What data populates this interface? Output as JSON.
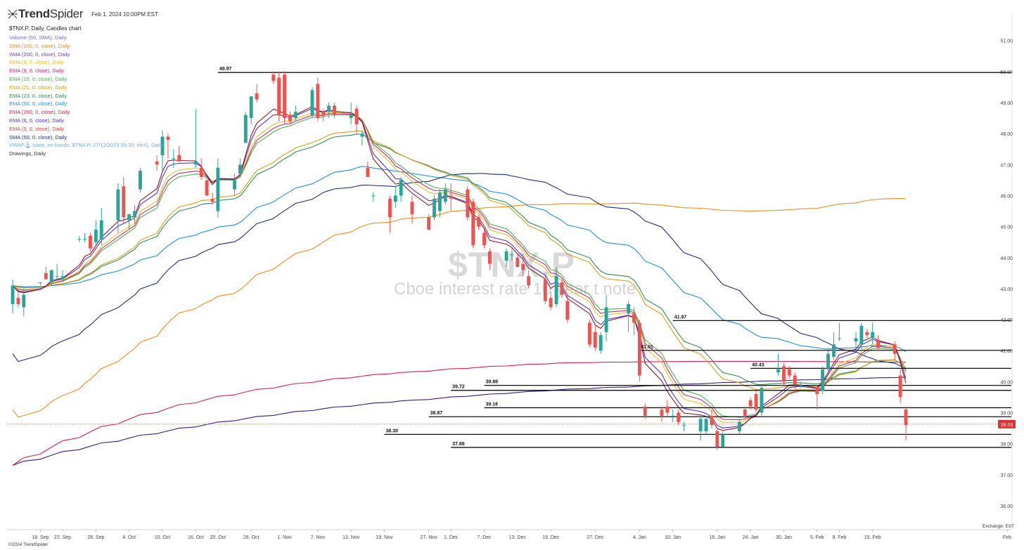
{
  "header": {
    "brand_bold": "Trend",
    "brand_thin": "Spider",
    "datetime": "Feb 1, 2024 10:00PM EST",
    "symbol_line": "$TNX.P, Daily, Candles chart"
  },
  "indicators": [
    {
      "label": "Volume (50, SMA), Daily",
      "color": "#7b68c8"
    },
    {
      "label": "SMA (100, 0, close), Daily",
      "color": "#f08c1e"
    },
    {
      "label": "SMA (200, 0, close), Daily",
      "color": "#6a3cb0"
    },
    {
      "label": "EMA (8, 0, close), Daily",
      "color": "#e6c229"
    },
    {
      "label": "EMA (9, 0, close), Daily",
      "color": "#c0306e"
    },
    {
      "label": "EMA (10, 0, close), Daily",
      "color": "#4caf50"
    },
    {
      "label": "EMA (21, 0, close), Daily",
      "color": "#d4a017"
    },
    {
      "label": "EMA (23, 0, close), Daily",
      "color": "#2e8b57"
    },
    {
      "label": "EMA (50, 0, close), Daily",
      "color": "#1e90d6"
    },
    {
      "label": "EMA (200, 0, close), Daily",
      "color": "#d62050"
    },
    {
      "label": "EMA (6, 0, close), Daily",
      "color": "#5a30c0"
    },
    {
      "label": "EMA (5, 0, close), Daily",
      "color": "#e04040"
    },
    {
      "label": "SMA (50, 0, close), Daily",
      "color": "#1a2e7a"
    },
    {
      "label": "VWAP⚓ (date, no bands, $TNX.P, 27/12/2023 09:30, hlc4), Daily",
      "color": "#6ab0e0"
    },
    {
      "label": "Drawings, Daily",
      "color": "#333333"
    }
  ],
  "watermark": {
    "symbol": "$TNX.P",
    "name": "Cboe interest rate 10 year t note"
  },
  "footer": {
    "copyright": "©2024 TrendSpider",
    "exchange": "Exchange: EST"
  },
  "chart_data": {
    "type": "candlestick",
    "y_ticks": [
      "51.00",
      "50.00",
      "49.00",
      "48.00",
      "47.00",
      "46.00",
      "45.00",
      "44.00",
      "43.00",
      "42.00",
      "41.00",
      "40.00",
      "39.00",
      "38.00",
      "37.00",
      "36.00"
    ],
    "ylim": [
      35.5,
      51.9
    ],
    "x_ticks": [
      "18. Sep",
      "22. Sep",
      "28. Sep",
      "4. Oct",
      "10. Oct",
      "16. Oct",
      "20. Oct",
      "26. Oct",
      "1. Nov",
      "7. Nov",
      "13. Nov",
      "19. Nov",
      "27. Nov",
      "1. Dec",
      "7. Dec",
      "13. Dec",
      "19. Dec",
      "27. Dec",
      "4. Jan",
      "10. Jan",
      "18. Jan",
      "24. Jan",
      "30. Jan",
      "5. Feb",
      "9. Feb",
      "15. Feb",
      "Feb"
    ],
    "last_price": {
      "value": 38.63,
      "label": "38.63"
    },
    "levels": [
      {
        "value": 49.97,
        "label": "49.97",
        "from": "20. Oct"
      },
      {
        "value": 41.97,
        "label": "41.97",
        "from": "10. Jan"
      },
      {
        "value": 41.01,
        "label": "41.01",
        "from": "4. Jan"
      },
      {
        "value": 40.43,
        "label": "40.43",
        "from": "24. Jan"
      },
      {
        "value": 39.88,
        "label": "39.88",
        "from": "7. Dec"
      },
      {
        "value": 39.72,
        "label": "39.72",
        "from": "1. Dec"
      },
      {
        "value": 39.16,
        "label": "39.16",
        "from": "7. Dec"
      },
      {
        "value": 38.87,
        "label": "38.87",
        "from": "27. Nov"
      },
      {
        "value": 38.3,
        "label": "38.30",
        "from": "19. Nov"
      },
      {
        "value": 37.88,
        "label": "37.88",
        "from": "1. Dec"
      }
    ],
    "candles": [
      {
        "d": "2023-09-13",
        "o": 42.5,
        "h": 43.3,
        "l": 42.2,
        "c": 43.1
      },
      {
        "d": "2023-09-14",
        "o": 42.7,
        "h": 42.9,
        "l": 42.4,
        "c": 42.5
      },
      {
        "d": "2023-09-15",
        "o": 42.4,
        "h": 43.0,
        "l": 42.1,
        "c": 42.8
      },
      {
        "d": "2023-09-18",
        "o": 43.2,
        "h": 43.2,
        "l": 43.1,
        "c": 43.2
      },
      {
        "d": "2023-09-19",
        "o": 43.5,
        "h": 43.7,
        "l": 43.3,
        "c": 43.3
      },
      {
        "d": "2023-09-20",
        "o": 43.2,
        "h": 43.6,
        "l": 43.1,
        "c": 43.6
      },
      {
        "d": "2023-09-21",
        "o": 43.4,
        "h": 43.8,
        "l": 43.3,
        "c": 43.4
      },
      {
        "d": "2023-09-22",
        "o": 43.3,
        "h": 43.6,
        "l": 43.2,
        "c": 43.4
      },
      {
        "d": "2023-09-25",
        "o": 44.6,
        "h": 44.7,
        "l": 44.5,
        "c": 44.6
      },
      {
        "d": "2023-09-26",
        "o": 44.6,
        "h": 44.8,
        "l": 44.5,
        "c": 44.6
      },
      {
        "d": "2023-09-27",
        "o": 44.7,
        "h": 44.8,
        "l": 44.2,
        "c": 44.3
      },
      {
        "d": "2023-09-28",
        "o": 44.5,
        "h": 45.2,
        "l": 44.4,
        "c": 44.9
      },
      {
        "d": "2023-09-29",
        "o": 44.6,
        "h": 45.6,
        "l": 44.4,
        "c": 45.2
      },
      {
        "d": "2023-10-02",
        "o": 45.2,
        "h": 46.4,
        "l": 44.8,
        "c": 46.2
      },
      {
        "d": "2023-10-03",
        "o": 46.3,
        "h": 46.6,
        "l": 45.1,
        "c": 45.3
      },
      {
        "d": "2023-10-04",
        "o": 45.2,
        "h": 45.4,
        "l": 44.9,
        "c": 45.4
      },
      {
        "d": "2023-10-05",
        "o": 45.3,
        "h": 45.7,
        "l": 45.1,
        "c": 45.5
      },
      {
        "d": "2023-10-06",
        "o": 46.2,
        "h": 46.9,
        "l": 46.1,
        "c": 46.8
      },
      {
        "d": "2023-10-09",
        "o": 47.1,
        "h": 47.3,
        "l": 46.8,
        "c": 47.0
      },
      {
        "d": "2023-10-10",
        "o": 47.3,
        "h": 48.1,
        "l": 46.8,
        "c": 47.9
      },
      {
        "d": "2023-10-11",
        "o": 47.9,
        "h": 48.0,
        "l": 47.2,
        "c": 47.8
      },
      {
        "d": "2023-10-12",
        "o": 47.2,
        "h": 47.5,
        "l": 46.9,
        "c": 47.2
      },
      {
        "d": "2023-10-13",
        "o": 47.3,
        "h": 47.6,
        "l": 47.1,
        "c": 47.1
      },
      {
        "d": "2023-10-16",
        "o": 47.0,
        "h": 48.8,
        "l": 46.9,
        "c": 47.1
      },
      {
        "d": "2023-10-17",
        "o": 46.9,
        "h": 47.2,
        "l": 46.5,
        "c": 46.6
      },
      {
        "d": "2023-10-18",
        "o": 46.5,
        "h": 46.5,
        "l": 46.0,
        "c": 46.0
      },
      {
        "d": "2023-10-19",
        "o": 45.9,
        "h": 46.1,
        "l": 45.7,
        "c": 45.8
      },
      {
        "d": "2023-10-20",
        "o": 45.5,
        "h": 47.2,
        "l": 45.3,
        "c": 46.9
      },
      {
        "d": "2023-10-23",
        "o": 46.2,
        "h": 46.7,
        "l": 46.0,
        "c": 46.5
      },
      {
        "d": "2023-10-24",
        "o": 46.7,
        "h": 47.2,
        "l": 46.6,
        "c": 47.0
      },
      {
        "d": "2023-10-25",
        "o": 47.7,
        "h": 48.7,
        "l": 47.7,
        "c": 48.6
      },
      {
        "d": "2023-10-26",
        "o": 48.5,
        "h": 49.2,
        "l": 48.3,
        "c": 49.2
      },
      {
        "d": "2023-10-27",
        "o": 49.3,
        "h": 49.6,
        "l": 49.0,
        "c": 49.1
      },
      {
        "d": "2023-10-30",
        "o": 49.9,
        "h": 50.0,
        "l": 49.6,
        "c": 49.7
      },
      {
        "d": "2023-10-31",
        "o": 49.8,
        "h": 50.0,
        "l": 48.4,
        "c": 48.6
      },
      {
        "d": "2023-11-01",
        "o": 49.9,
        "h": 50.0,
        "l": 48.3,
        "c": 48.5
      },
      {
        "d": "2023-11-02",
        "o": 48.6,
        "h": 48.7,
        "l": 48.3,
        "c": 48.4
      },
      {
        "d": "2023-11-03",
        "o": 48.5,
        "h": 48.9,
        "l": 48.4,
        "c": 48.7
      },
      {
        "d": "2023-11-06",
        "o": 48.6,
        "h": 49.5,
        "l": 48.5,
        "c": 49.4
      },
      {
        "d": "2023-11-07",
        "o": 49.6,
        "h": 49.8,
        "l": 48.4,
        "c": 48.5
      },
      {
        "d": "2023-11-08",
        "o": 48.7,
        "h": 48.8,
        "l": 48.4,
        "c": 48.6
      },
      {
        "d": "2023-11-09",
        "o": 48.7,
        "h": 49.0,
        "l": 48.5,
        "c": 48.9
      },
      {
        "d": "2023-11-10",
        "o": 48.9,
        "h": 49.0,
        "l": 48.5,
        "c": 48.6
      },
      {
        "d": "2023-11-13",
        "o": 48.5,
        "h": 49.0,
        "l": 48.3,
        "c": 48.6
      },
      {
        "d": "2023-11-14",
        "o": 48.8,
        "h": 48.9,
        "l": 48.0,
        "c": 48.3
      },
      {
        "d": "2023-11-15",
        "o": 47.9,
        "h": 48.1,
        "l": 47.6,
        "c": 48.0
      },
      {
        "d": "2023-11-16",
        "o": 46.9,
        "h": 47.1,
        "l": 46.6,
        "c": 46.6
      },
      {
        "d": "2023-11-17",
        "o": 46.0,
        "h": 46.1,
        "l": 45.8,
        "c": 46.0
      },
      {
        "d": "2023-11-20",
        "o": 45.9,
        "h": 46.0,
        "l": 44.8,
        "c": 45.3
      },
      {
        "d": "2023-11-21",
        "o": 45.8,
        "h": 46.3,
        "l": 45.6,
        "c": 46.0
      },
      {
        "d": "2023-11-22",
        "o": 46.0,
        "h": 46.6,
        "l": 45.8,
        "c": 46.5
      },
      {
        "d": "2023-11-24",
        "o": 45.8,
        "h": 46.0,
        "l": 45.1,
        "c": 45.4
      },
      {
        "d": "2023-11-27",
        "o": 45.3,
        "h": 45.4,
        "l": 44.9,
        "c": 44.9
      },
      {
        "d": "2023-11-28",
        "o": 45.3,
        "h": 46.0,
        "l": 45.2,
        "c": 45.9
      },
      {
        "d": "2023-11-29",
        "o": 45.5,
        "h": 46.2,
        "l": 45.3,
        "c": 46.1
      },
      {
        "d": "2023-11-30",
        "o": 45.8,
        "h": 46.4,
        "l": 45.7,
        "c": 46.2
      },
      {
        "d": "2023-12-01",
        "o": 46.0,
        "h": 46.4,
        "l": 45.5,
        "c": 45.9
      },
      {
        "d": "2023-12-04",
        "o": 46.2,
        "h": 46.3,
        "l": 45.2,
        "c": 45.3
      },
      {
        "d": "2023-12-05",
        "o": 45.8,
        "h": 45.9,
        "l": 44.3,
        "c": 44.4
      },
      {
        "d": "2023-12-06",
        "o": 45.3,
        "h": 45.4,
        "l": 44.9,
        "c": 45.0
      },
      {
        "d": "2023-12-07",
        "o": 44.8,
        "h": 44.9,
        "l": 44.3,
        "c": 44.4
      },
      {
        "d": "2023-12-08",
        "o": 44.2,
        "h": 44.3,
        "l": 43.6,
        "c": 43.8
      },
      {
        "d": "2023-12-11",
        "o": 43.9,
        "h": 44.3,
        "l": 43.7,
        "c": 44.2
      },
      {
        "d": "2023-12-12",
        "o": 44.1,
        "h": 44.3,
        "l": 43.9,
        "c": 44.1
      },
      {
        "d": "2023-12-13",
        "o": 44.0,
        "h": 44.1,
        "l": 43.7,
        "c": 43.7
      },
      {
        "d": "2023-12-14",
        "o": 43.8,
        "h": 44.1,
        "l": 43.4,
        "c": 43.6
      },
      {
        "d": "2023-12-15",
        "o": 43.4,
        "h": 43.6,
        "l": 43.0,
        "c": 43.1
      },
      {
        "d": "2023-12-18",
        "o": 43.3,
        "h": 43.4,
        "l": 42.5,
        "c": 42.6
      },
      {
        "d": "2023-12-19",
        "o": 42.7,
        "h": 42.9,
        "l": 42.3,
        "c": 42.4
      },
      {
        "d": "2023-12-20",
        "o": 42.5,
        "h": 43.7,
        "l": 42.4,
        "c": 43.4
      },
      {
        "d": "2023-12-21",
        "o": 43.2,
        "h": 43.3,
        "l": 42.7,
        "c": 42.8
      },
      {
        "d": "2023-12-22",
        "o": 42.6,
        "h": 42.8,
        "l": 41.9,
        "c": 42.0
      },
      {
        "d": "2023-12-26",
        "o": 41.9,
        "h": 42.0,
        "l": 41.1,
        "c": 41.2
      },
      {
        "d": "2023-12-27",
        "o": 41.6,
        "h": 41.8,
        "l": 41.0,
        "c": 41.1
      },
      {
        "d": "2023-12-28",
        "o": 41.0,
        "h": 41.6,
        "l": 40.9,
        "c": 41.5
      },
      {
        "d": "2023-12-29",
        "o": 41.6,
        "h": 42.8,
        "l": 41.3,
        "c": 42.4
      },
      {
        "d": "2024-01-02",
        "o": 42.2,
        "h": 42.6,
        "l": 41.6,
        "c": 42.5
      },
      {
        "d": "2024-01-03",
        "o": 42.2,
        "h": 42.4,
        "l": 41.5,
        "c": 41.9
      },
      {
        "d": "2024-01-04",
        "o": 41.9,
        "h": 42.0,
        "l": 40.0,
        "c": 40.2
      },
      {
        "d": "2024-01-05",
        "o": 39.2,
        "h": 39.3,
        "l": 38.8,
        "c": 38.9
      },
      {
        "d": "2024-01-08",
        "o": 39.1,
        "h": 39.2,
        "l": 38.7,
        "c": 38.9
      },
      {
        "d": "2024-01-09",
        "o": 39.2,
        "h": 39.4,
        "l": 38.9,
        "c": 39.0
      },
      {
        "d": "2024-01-10",
        "o": 38.9,
        "h": 39.1,
        "l": 38.7,
        "c": 38.9
      },
      {
        "d": "2024-01-11",
        "o": 39.0,
        "h": 39.1,
        "l": 38.6,
        "c": 38.7
      },
      {
        "d": "2024-01-12",
        "o": 38.6,
        "h": 38.7,
        "l": 38.4,
        "c": 38.6
      },
      {
        "d": "2024-01-15",
        "o": 38.4,
        "h": 38.9,
        "l": 38.1,
        "c": 38.8
      },
      {
        "d": "2024-01-16",
        "o": 38.4,
        "h": 38.9,
        "l": 38.3,
        "c": 38.8
      },
      {
        "d": "2024-01-17",
        "o": 38.9,
        "h": 39.1,
        "l": 38.5,
        "c": 38.6
      },
      {
        "d": "2024-01-18",
        "o": 38.4,
        "h": 38.5,
        "l": 37.8,
        "c": 37.9
      },
      {
        "d": "2024-01-19",
        "o": 37.9,
        "h": 38.4,
        "l": 37.9,
        "c": 38.3
      },
      {
        "d": "2024-01-22",
        "o": 38.4,
        "h": 38.8,
        "l": 38.3,
        "c": 38.7
      },
      {
        "d": "2024-01-23",
        "o": 39.1,
        "h": 39.2,
        "l": 38.8,
        "c": 38.9
      },
      {
        "d": "2024-01-24",
        "o": 39.4,
        "h": 39.5,
        "l": 39.1,
        "c": 39.2
      },
      {
        "d": "2024-01-25",
        "o": 39.6,
        "h": 39.7,
        "l": 39.0,
        "c": 39.1
      },
      {
        "d": "2024-01-26",
        "o": 39.0,
        "h": 39.9,
        "l": 38.9,
        "c": 39.8
      },
      {
        "d": "2024-01-29",
        "o": 40.3,
        "h": 40.9,
        "l": 40.2,
        "c": 40.4
      },
      {
        "d": "2024-01-30",
        "o": 40.5,
        "h": 40.6,
        "l": 39.9,
        "c": 40.0
      },
      {
        "d": "2024-01-31",
        "o": 40.4,
        "h": 40.5,
        "l": 40.1,
        "c": 40.2
      },
      {
        "d": "2024-02-01",
        "o": 40.2,
        "h": 40.3,
        "l": 39.7,
        "c": 39.9
      },
      {
        "d": "2024-02-02",
        "o": 39.9,
        "h": 40.0,
        "l": 39.8,
        "c": 39.9
      },
      {
        "d": "2024-02-05",
        "o": 39.8,
        "h": 39.9,
        "l": 39.1,
        "c": 39.6
      },
      {
        "d": "2024-02-06",
        "o": 39.7,
        "h": 40.5,
        "l": 39.6,
        "c": 40.4
      },
      {
        "d": "2024-02-07",
        "o": 40.4,
        "h": 41.0,
        "l": 40.2,
        "c": 40.9
      },
      {
        "d": "2024-02-08",
        "o": 40.8,
        "h": 41.6,
        "l": 40.7,
        "c": 41.2
      },
      {
        "d": "2024-02-09",
        "o": 41.4,
        "h": 41.9,
        "l": 41.3,
        "c": 41.4
      },
      {
        "d": "2024-02-12",
        "o": 41.3,
        "h": 41.6,
        "l": 41.0,
        "c": 41.4
      },
      {
        "d": "2024-02-13",
        "o": 41.2,
        "h": 41.9,
        "l": 41.0,
        "c": 41.8
      },
      {
        "d": "2024-02-14",
        "o": 41.6,
        "h": 41.7,
        "l": 41.4,
        "c": 41.5
      },
      {
        "d": "2024-02-15",
        "o": 41.4,
        "h": 41.9,
        "l": 41.2,
        "c": 41.6
      },
      {
        "d": "2024-02-16",
        "o": 41.3,
        "h": 41.5,
        "l": 41.0,
        "c": 41.1
      },
      {
        "d": "2024-02-19",
        "o": 41.2,
        "h": 41.3,
        "l": 40.7,
        "c": 40.9
      },
      {
        "d": "2024-02-20",
        "o": 40.2,
        "h": 40.4,
        "l": 39.3,
        "c": 39.5
      },
      {
        "d": "2024-02-21",
        "o": 39.1,
        "h": 39.2,
        "l": 38.1,
        "c": 38.6
      }
    ]
  }
}
